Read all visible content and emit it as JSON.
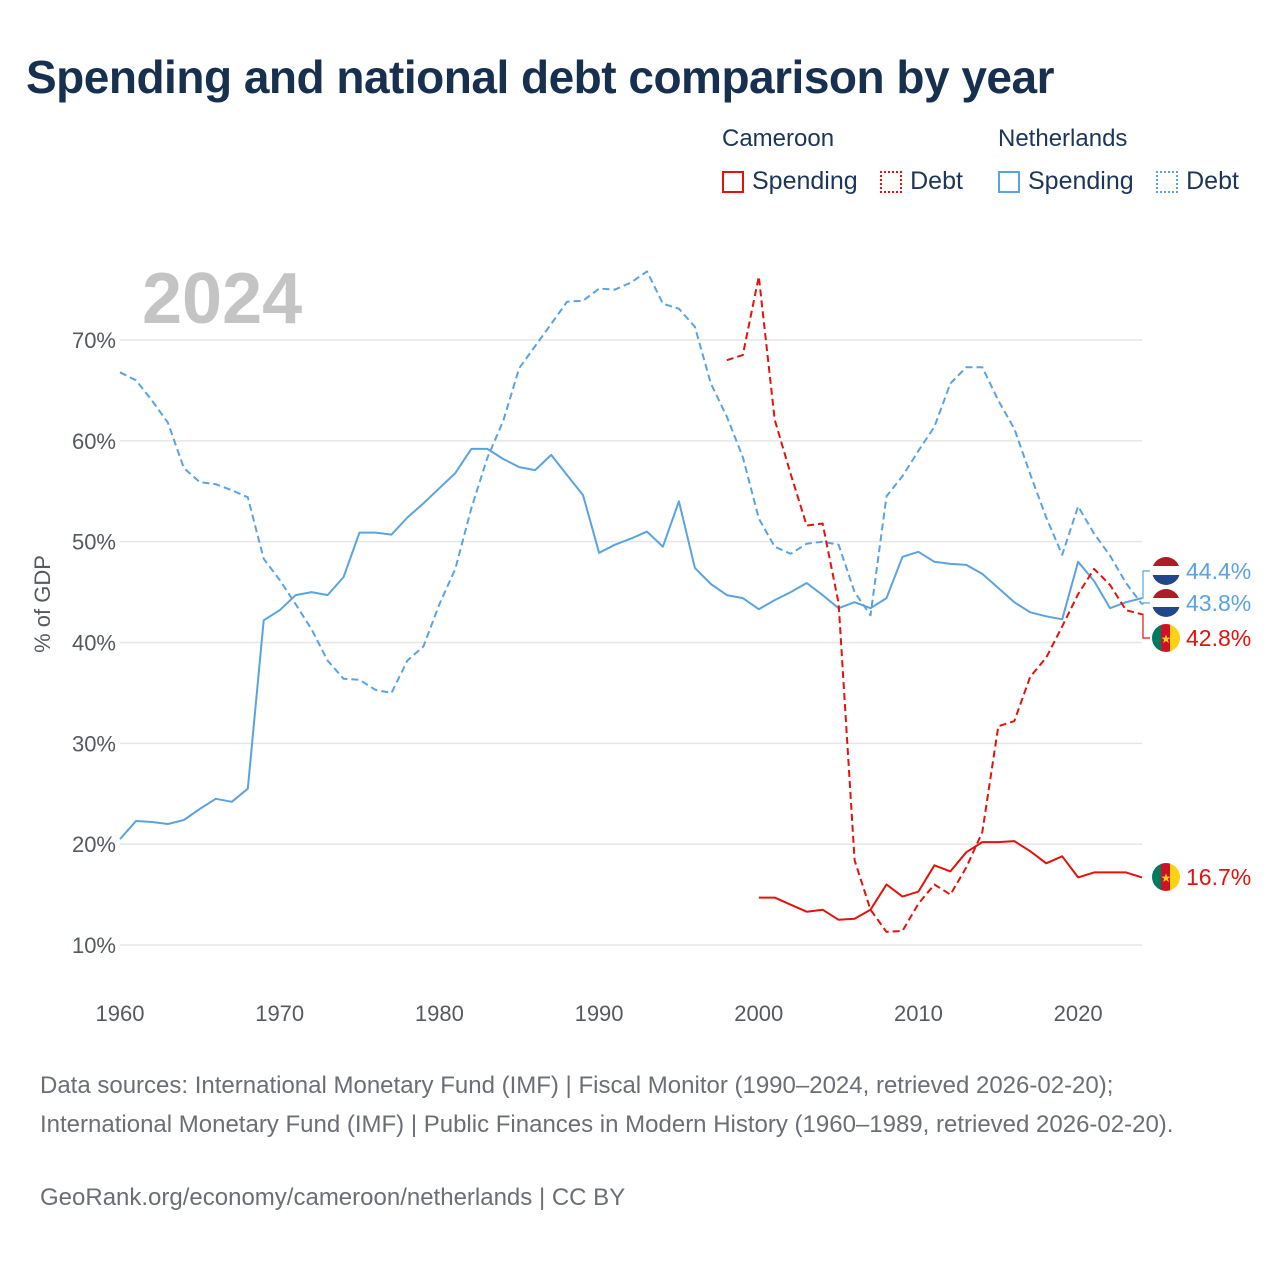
{
  "title": "Spending and national debt comparison by year",
  "year_label": "2024",
  "legend": {
    "groups": [
      {
        "name": "Cameroon",
        "items": [
          {
            "label": "Spending",
            "color": "#e3120b",
            "style": "solid"
          },
          {
            "label": "Debt",
            "color": "#e3120b",
            "style": "dotted"
          }
        ]
      },
      {
        "name": "Netherlands",
        "items": [
          {
            "label": "Spending",
            "color": "#5ba3e0",
            "style": "solid"
          },
          {
            "label": "Debt",
            "color": "#5ba3e0",
            "style": "dotted"
          }
        ]
      }
    ]
  },
  "chart_data": {
    "type": "line",
    "ylabel": "% of GDP",
    "xlabel": "",
    "xlim": [
      1960,
      2024
    ],
    "ylim": [
      10,
      75
    ],
    "yticks": [
      10,
      20,
      30,
      40,
      50,
      60,
      70
    ],
    "ytick_labels": [
      "10%",
      "20%",
      "30%",
      "40%",
      "50%",
      "60%",
      "70%"
    ],
    "xticks": [
      1960,
      1970,
      1980,
      1990,
      2000,
      2010,
      2020
    ],
    "xtick_labels": [
      "1960",
      "1970",
      "1980",
      "1990",
      "2000",
      "2010",
      "2020"
    ],
    "series": [
      {
        "name": "Netherlands Spending",
        "color": "#5ba3e0",
        "dash": false,
        "x": [
          1960,
          1961,
          1962,
          1963,
          1964,
          1965,
          1966,
          1967,
          1968,
          1969,
          1970,
          1971,
          1972,
          1973,
          1974,
          1975,
          1976,
          1977,
          1978,
          1979,
          1980,
          1981,
          1982,
          1983,
          1984,
          1985,
          1986,
          1987,
          1988,
          1989,
          1990,
          1991,
          1992,
          1993,
          1994,
          1995,
          1996,
          1997,
          1998,
          1999,
          2000,
          2001,
          2002,
          2003,
          2004,
          2005,
          2006,
          2007,
          2008,
          2009,
          2010,
          2011,
          2012,
          2013,
          2014,
          2015,
          2016,
          2017,
          2018,
          2019,
          2020,
          2021,
          2022,
          2023,
          2024
        ],
        "values": [
          20.5,
          22.3,
          22.2,
          22.0,
          22.4,
          23.5,
          24.5,
          24.2,
          25.5,
          42.2,
          43.2,
          44.7,
          45.0,
          44.7,
          46.5,
          50.9,
          50.9,
          50.7,
          52.4,
          53.8,
          55.3,
          56.8,
          59.2,
          59.2,
          58.2,
          57.4,
          57.1,
          58.6,
          56.6,
          54.6,
          48.9,
          49.7,
          50.3,
          51.0,
          49.5,
          54.0,
          47.4,
          45.8,
          44.7,
          44.4,
          43.3,
          44.2,
          45.0,
          45.9,
          44.7,
          43.4,
          44.0,
          43.4,
          44.4,
          48.5,
          49.0,
          48.0,
          47.8,
          47.7,
          46.8,
          45.4,
          44.0,
          43.0,
          42.6,
          42.3,
          48.0,
          46.1,
          43.4,
          44.0,
          44.4
        ],
        "end_label": "44.4%"
      },
      {
        "name": "Netherlands Debt",
        "color": "#5ba3e0",
        "dash": true,
        "x": [
          1960,
          1961,
          1962,
          1963,
          1964,
          1965,
          1966,
          1967,
          1968,
          1969,
          1970,
          1971,
          1972,
          1973,
          1974,
          1975,
          1976,
          1977,
          1978,
          1979,
          1980,
          1981,
          1982,
          1983,
          1984,
          1985,
          1986,
          1987,
          1988,
          1989,
          1990,
          1991,
          1992,
          1993,
          1994,
          1995,
          1996,
          1997,
          1998,
          1999,
          2000,
          2001,
          2002,
          2003,
          2004,
          2005,
          2006,
          2007,
          2008,
          2009,
          2010,
          2011,
          2012,
          2013,
          2014,
          2015,
          2016,
          2017,
          2018,
          2019,
          2020,
          2021,
          2022,
          2023,
          2024
        ],
        "values": [
          66.8,
          66.0,
          64.0,
          61.8,
          57.3,
          55.9,
          55.7,
          55.1,
          54.4,
          48.3,
          46.2,
          43.8,
          41.3,
          38.2,
          36.4,
          36.3,
          35.3,
          35.0,
          38.2,
          39.6,
          43.8,
          47.3,
          53.3,
          58.3,
          62.0,
          67.2,
          69.4,
          71.6,
          73.8,
          73.9,
          75.1,
          75.0,
          75.7,
          76.8,
          73.6,
          73.1,
          71.3,
          65.7,
          62.4,
          58.4,
          52.3,
          49.5,
          48.8,
          49.8,
          50.0,
          49.7,
          45.0,
          42.7,
          54.5,
          56.5,
          59.0,
          61.4,
          65.7,
          67.3,
          67.3,
          64.0,
          61.2,
          56.7,
          52.4,
          48.7,
          53.5,
          50.8,
          48.6,
          45.9,
          43.8
        ],
        "end_label": "43.8%"
      },
      {
        "name": "Cameroon Spending",
        "color": "#e3120b",
        "dash": false,
        "x": [
          2000,
          2001,
          2002,
          2003,
          2004,
          2005,
          2006,
          2007,
          2008,
          2009,
          2010,
          2011,
          2012,
          2013,
          2014,
          2015,
          2016,
          2017,
          2018,
          2019,
          2020,
          2021,
          2022,
          2023,
          2024
        ],
        "values": [
          14.7,
          14.7,
          14.0,
          13.3,
          13.5,
          12.5,
          12.6,
          13.5,
          16.0,
          14.8,
          15.3,
          17.9,
          17.3,
          19.2,
          20.2,
          20.2,
          20.3,
          19.3,
          18.1,
          18.8,
          16.7,
          17.2,
          17.2,
          17.2,
          16.7
        ],
        "end_label": "16.7%"
      },
      {
        "name": "Cameroon Debt",
        "color": "#e3120b",
        "dash": true,
        "x": [
          1998,
          1999,
          2000,
          2001,
          2002,
          2003,
          2004,
          2005,
          2006,
          2007,
          2008,
          2009,
          2010,
          2011,
          2012,
          2013,
          2014,
          2015,
          2016,
          2017,
          2018,
          2019,
          2020,
          2021,
          2022,
          2023,
          2024
        ],
        "values": [
          68.0,
          68.5,
          76.3,
          62.1,
          56.7,
          51.6,
          51.8,
          43.9,
          18.4,
          13.5,
          11.3,
          11.4,
          14.1,
          16.0,
          15.0,
          17.7,
          21.2,
          31.7,
          32.2,
          36.6,
          38.5,
          41.6,
          44.8,
          47.3,
          45.7,
          43.2,
          42.8
        ],
        "end_label": "42.8%"
      }
    ]
  },
  "sources": "Data sources: International Monetary Fund (IMF) | Fiscal Monitor (1990–2024, retrieved 2026-02-20); International Monetary Fund (IMF) | Public Finances in Modern History (1960–1989, retrieved 2026-02-20).",
  "credit": "GeoRank.org/economy/cameroon/netherlands | CC BY"
}
